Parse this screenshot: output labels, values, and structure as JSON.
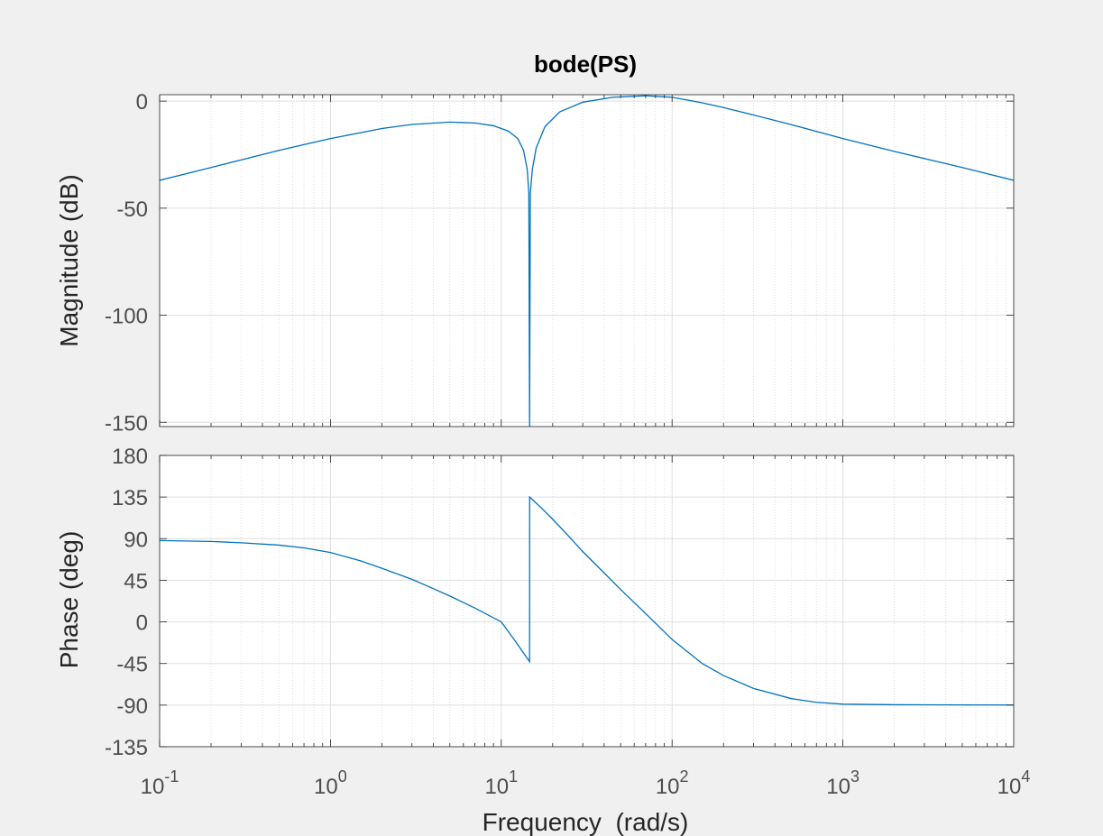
{
  "figure": {
    "background": "#f0f0f0",
    "axes_background": "#ffffff",
    "grid_color": "#dfdfdf",
    "line_color": "#0072bd"
  },
  "chart_data": [
    {
      "type": "line",
      "title": "bode(PS)",
      "ylabel": "Magnitude (dB)",
      "xlabel": "",
      "xscale": "log",
      "xlim": [
        0.1,
        10000
      ],
      "ylim": [
        -152,
        3
      ],
      "grid": true,
      "yticks": [
        0,
        -50,
        -100,
        -150
      ],
      "ytick_labels": [
        "0",
        "-50",
        "-100",
        "-150"
      ],
      "series": [
        {
          "x": [
            0.1,
            0.2,
            0.5,
            1,
            2,
            3,
            5,
            7,
            9,
            11,
            12.5,
            13.5,
            14.2,
            14.5,
            14.65,
            14.8,
            15.2,
            16,
            18,
            22,
            30,
            45,
            70,
            100,
            150,
            200,
            300,
            500,
            1000,
            2000,
            5000,
            10000
          ],
          "y": [
            -37,
            -31,
            -23,
            -17.5,
            -12.8,
            -10.9,
            -9.8,
            -10.2,
            -11.5,
            -14,
            -17.5,
            -23,
            -32,
            -43,
            -152,
            -43,
            -32,
            -22,
            -12,
            -5,
            -0.5,
            1.8,
            2.5,
            1.8,
            -0.8,
            -3,
            -6.5,
            -11,
            -17.5,
            -23.5,
            -31,
            -37
          ]
        }
      ]
    },
    {
      "type": "line",
      "title": "",
      "ylabel": "Phase (deg)",
      "xlabel": "Frequency  (rad/s)",
      "xscale": "log",
      "xlim": [
        0.1,
        10000
      ],
      "ylim": [
        -135,
        180
      ],
      "grid": true,
      "yticks": [
        180,
        135,
        90,
        45,
        0,
        -45,
        -90,
        -135
      ],
      "ytick_labels": [
        "180",
        "135",
        "90",
        "45",
        "0",
        "-45",
        "-90",
        "-135"
      ],
      "xtick_bases": [
        "10",
        "10",
        "10",
        "10",
        "10",
        "10"
      ],
      "xtick_exponents": [
        "-1",
        "0",
        "1",
        "2",
        "3",
        "4"
      ],
      "series": [
        {
          "x": [
            0.1,
            0.2,
            0.3,
            0.5,
            0.7,
            1,
            1.5,
            2,
            3,
            4,
            5,
            7,
            10,
            12,
            14.65,
            14.66,
            17,
            20,
            25,
            30,
            40,
            50,
            70,
            100,
            150,
            200,
            300,
            500,
            700,
            1000,
            2000,
            5000,
            10000
          ],
          "y": [
            88,
            87,
            85.5,
            83,
            80,
            75,
            66,
            58,
            46,
            36,
            28,
            15,
            0,
            -20,
            -43,
            135,
            124,
            111,
            92,
            76,
            53,
            35,
            9,
            -19,
            -45,
            -58,
            -72,
            -83,
            -87,
            -89,
            -89.6,
            -89.8,
            -89.9
          ]
        }
      ]
    }
  ]
}
